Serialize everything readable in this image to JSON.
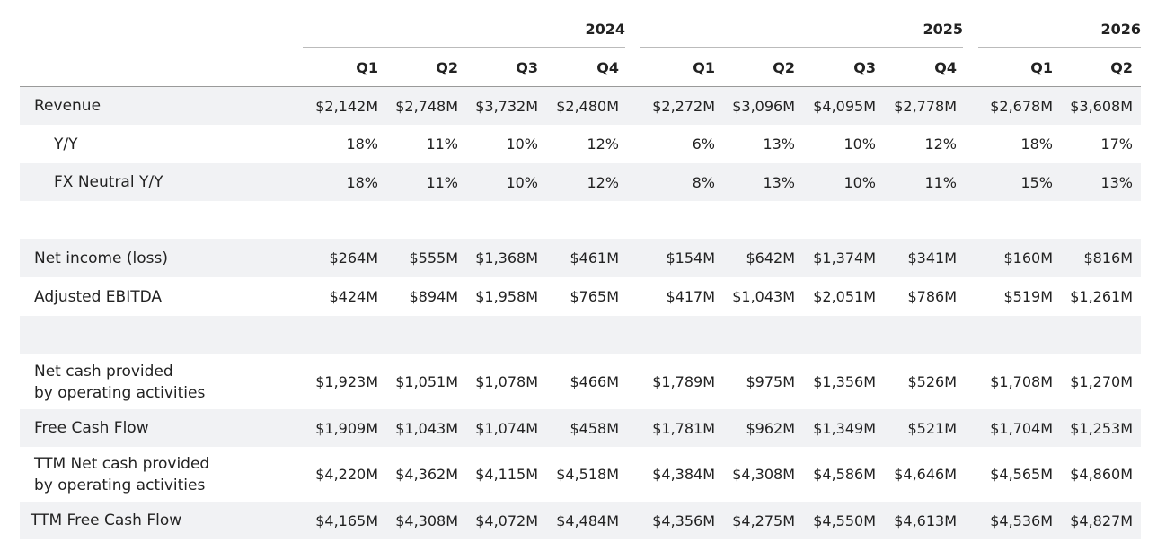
{
  "years": [
    "2024",
    "2025",
    "2026"
  ],
  "quarters": [
    "Q1",
    "Q2",
    "Q3",
    "Q4",
    "Q1",
    "Q2",
    "Q3",
    "Q4",
    "Q1",
    "Q2"
  ],
  "rows": [
    {
      "label": "Revenue",
      "values": [
        "$2,142M",
        "$2,748M",
        "$3,732M",
        "$2,480M",
        "$2,272M",
        "$3,096M",
        "$4,095M",
        "$2,778M",
        "$2,678M",
        "$3,608M"
      ]
    },
    {
      "label": "Y/Y",
      "values": [
        "18%",
        "11%",
        "10%",
        "12%",
        "6%",
        "13%",
        "10%",
        "12%",
        "18%",
        "17%"
      ]
    },
    {
      "label": "FX Neutral Y/Y",
      "values": [
        "18%",
        "11%",
        "10%",
        "12%",
        "8%",
        "13%",
        "10%",
        "11%",
        "15%",
        "13%"
      ]
    },
    {
      "label": "",
      "values": []
    },
    {
      "label": "Net income (loss)",
      "values": [
        "$264M",
        "$555M",
        "$1,368M",
        "$461M",
        "$154M",
        "$642M",
        "$1,374M",
        "$341M",
        "$160M",
        "$816M"
      ]
    },
    {
      "label": "Adjusted EBITDA",
      "values": [
        "$424M",
        "$894M",
        "$1,958M",
        "$765M",
        "$417M",
        "$1,043M",
        "$2,051M",
        "$786M",
        "$519M",
        "$1,261M"
      ]
    },
    {
      "label": "",
      "values": []
    },
    {
      "label": "Net cash provided\nby operating activities",
      "values": [
        "$1,923M",
        "$1,051M",
        "$1,078M",
        "$466M",
        "$1,789M",
        "$975M",
        "$1,356M",
        "$526M",
        "$1,708M",
        "$1,270M"
      ]
    },
    {
      "label": "Free Cash Flow",
      "values": [
        "$1,909M",
        "$1,043M",
        "$1,074M",
        "$458M",
        "$1,781M",
        "$962M",
        "$1,349M",
        "$521M",
        "$1,704M",
        "$1,253M"
      ]
    },
    {
      "label": "TTM Net cash provided\nby operating activities",
      "values": [
        "$4,220M",
        "$4,362M",
        "$4,115M",
        "$4,518M",
        "$4,384M",
        "$4,308M",
        "$4,586M",
        "$4,646M",
        "$4,565M",
        "$4,860M"
      ]
    },
    {
      "label": "TTM Free Cash Flow",
      "values": [
        "$4,165M",
        "$4,308M",
        "$4,072M",
        "$4,484M",
        "$4,356M",
        "$4,275M",
        "$4,550M",
        "$4,613M",
        "$4,536M",
        "$4,827M"
      ]
    }
  ]
}
